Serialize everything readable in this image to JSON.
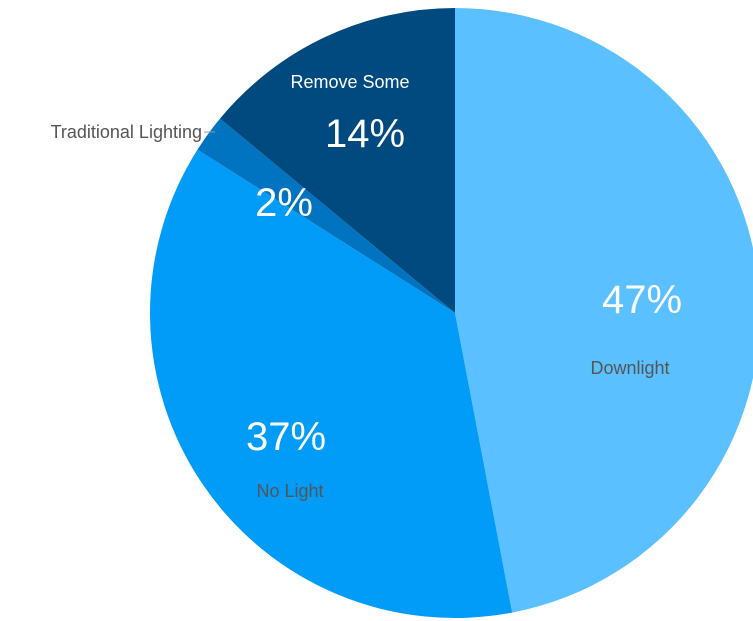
{
  "chart_data": {
    "type": "pie",
    "title": "",
    "slices": [
      {
        "label": "Downlight",
        "value": 47,
        "value_label": "47%",
        "color": "#5AC0FF"
      },
      {
        "label": "No Light",
        "value": 37,
        "value_label": "37%",
        "color": "#009CF7"
      },
      {
        "label": "Traditional Lighting",
        "value": 2,
        "value_label": "2%",
        "color": "#0074C0"
      },
      {
        "label": "Remove Some",
        "value": 14,
        "value_label": "14%",
        "color": "#004A7F"
      }
    ],
    "start_angle": "12 o'clock",
    "direction": "clockwise",
    "legend": "none",
    "label_colors": {
      "on_light": "#555555",
      "on_dark": "#ffffff"
    }
  }
}
